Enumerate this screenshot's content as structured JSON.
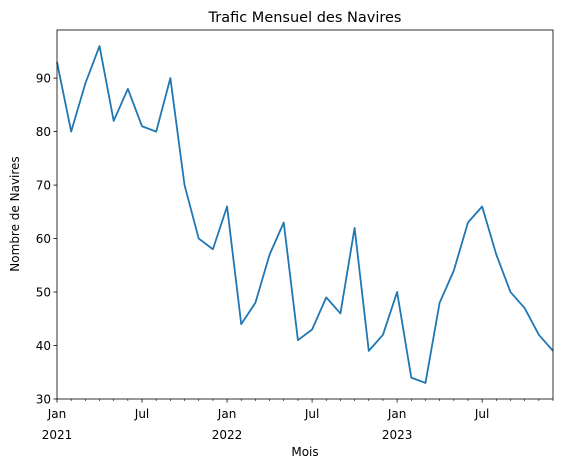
{
  "chart_data": {
    "type": "line",
    "title": "Trafic Mensuel des Navires",
    "xlabel": "Mois",
    "ylabel": "Nombre de Navires",
    "ylim": [
      30,
      99
    ],
    "yticks": [
      30,
      40,
      50,
      60,
      70,
      80,
      90
    ],
    "grid": false,
    "legend": "none",
    "colors": {
      "line": "#1f77b4"
    },
    "x_tick_labels": [
      {
        "label": "Jan",
        "sub": "2021"
      },
      {
        "label": "Jul",
        "sub": ""
      },
      {
        "label": "Jan",
        "sub": "2022"
      },
      {
        "label": "Jul",
        "sub": ""
      },
      {
        "label": "Jan",
        "sub": "2023"
      },
      {
        "label": "Jul",
        "sub": ""
      }
    ],
    "x": [
      "2021-01",
      "2021-02",
      "2021-03",
      "2021-04",
      "2021-05",
      "2021-06",
      "2021-07",
      "2021-08",
      "2021-09",
      "2021-10",
      "2021-11",
      "2021-12",
      "2022-01",
      "2022-02",
      "2022-03",
      "2022-04",
      "2022-05",
      "2022-06",
      "2022-07",
      "2022-08",
      "2022-09",
      "2022-10",
      "2022-11",
      "2022-12",
      "2023-01",
      "2023-02",
      "2023-03",
      "2023-04",
      "2023-05",
      "2023-06",
      "2023-07",
      "2023-08",
      "2023-09",
      "2023-10",
      "2023-11",
      "2023-12"
    ],
    "series": [
      {
        "values": [
          93,
          80,
          89,
          96,
          82,
          88,
          81,
          80,
          90,
          70,
          60,
          58,
          66,
          44,
          48,
          57,
          63,
          41,
          43,
          49,
          46,
          62,
          39,
          42,
          50,
          34,
          33,
          48,
          54,
          63,
          66,
          57,
          50,
          47,
          42,
          39
        ]
      }
    ]
  }
}
